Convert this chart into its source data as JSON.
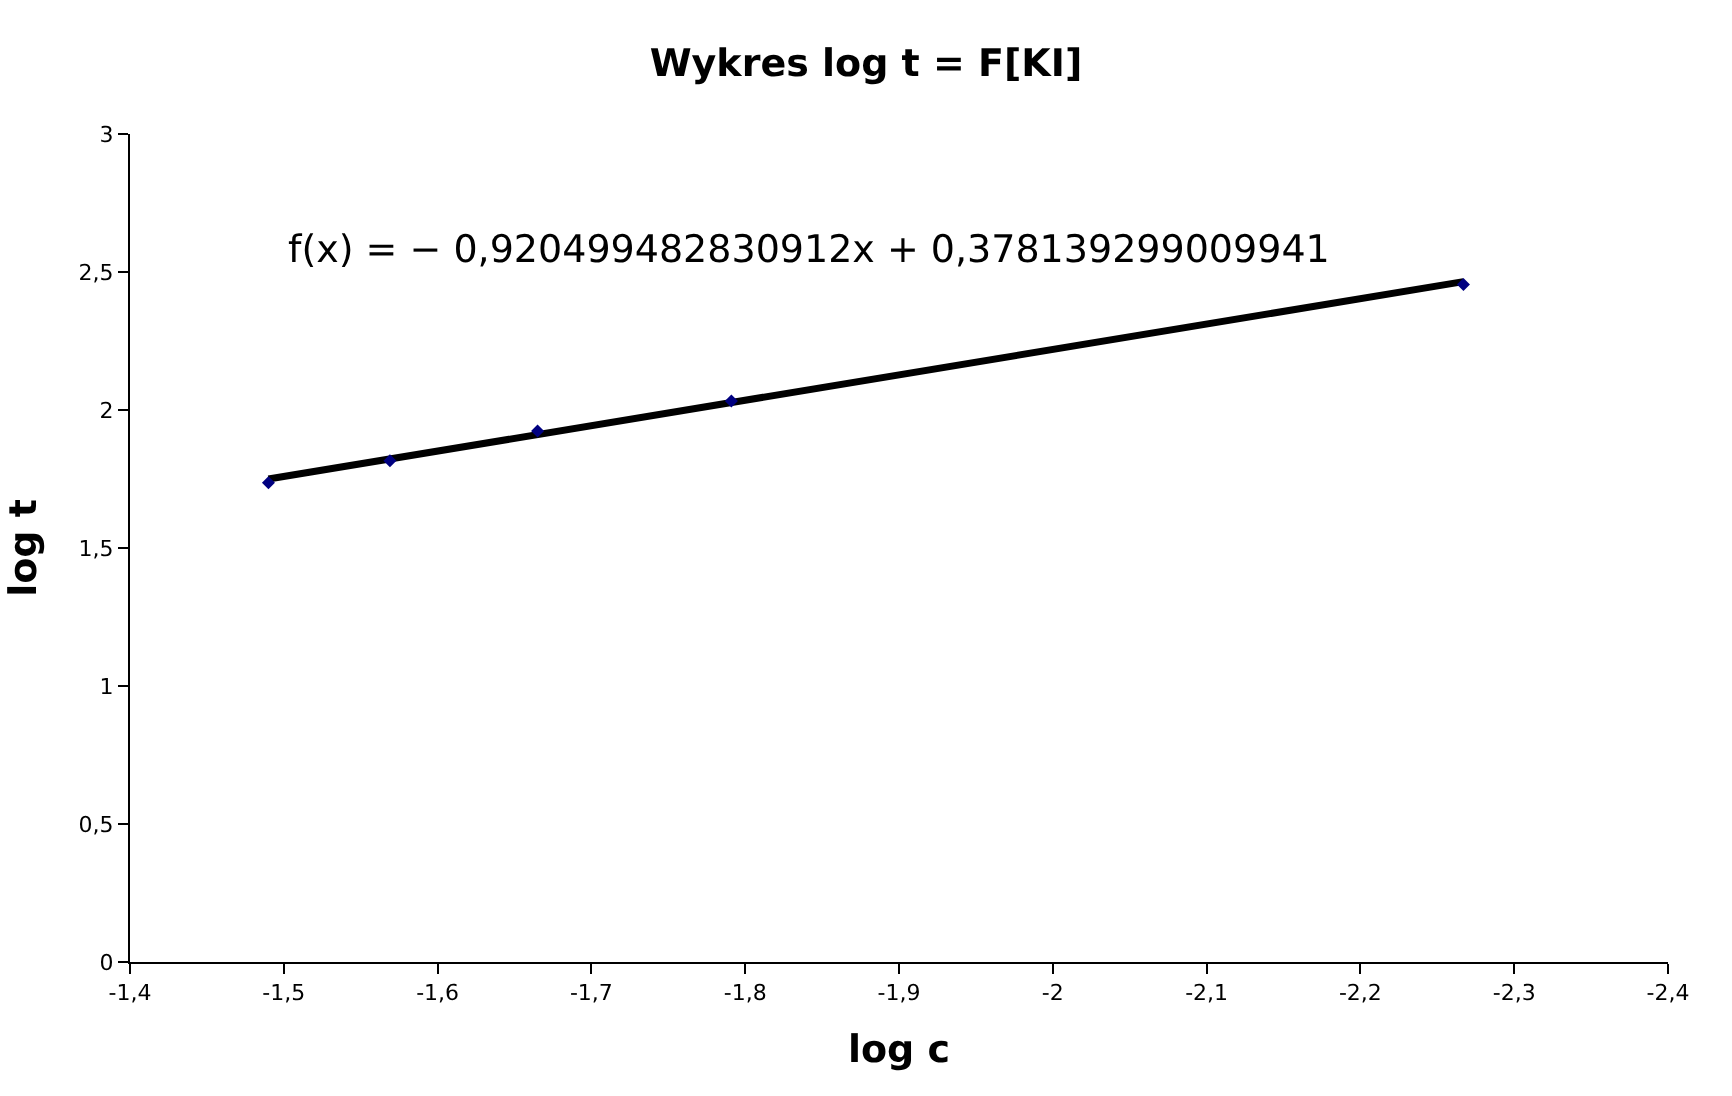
{
  "chart_data": {
    "type": "scatter",
    "title": "Wykres log t = F[KI]",
    "xlabel": "log c",
    "ylabel": "log t",
    "annotations": [
      "f(x) = − 0,920499482830912x + 0,378139299009941"
    ],
    "series": [
      {
        "color": "#000080",
        "x": [
          -1.49,
          -1.569,
          -1.665,
          -1.791,
          -2.267
        ],
        "values": [
          1.736,
          1.816,
          1.924,
          2.033,
          2.455
        ]
      },
      {
        "type": "line",
        "color": "#000000",
        "marker": "none",
        "x": [
          -1.49,
          -2.267
        ],
        "values": [
          1.75,
          2.465
        ]
      }
    ],
    "xlim": [
      -1.4,
      -2.4
    ],
    "xticks": [
      {
        "value": -1.4,
        "label": "-1,4"
      },
      {
        "value": -1.5,
        "label": "-1,5"
      },
      {
        "value": -1.6,
        "label": "-1,6"
      },
      {
        "value": -1.7,
        "label": "-1,7"
      },
      {
        "value": -1.8,
        "label": "-1,8"
      },
      {
        "value": -1.9,
        "label": "-1,9"
      },
      {
        "value": -2,
        "label": "-2"
      },
      {
        "value": -2.1,
        "label": "-2,1"
      },
      {
        "value": -2.2,
        "label": "-2,2"
      },
      {
        "value": -2.3,
        "label": "-2,3"
      },
      {
        "value": -2.4,
        "label": "-2,4"
      }
    ],
    "ylim": [
      0,
      3
    ],
    "yticks": [
      0,
      {
        "value": 0.5,
        "label": "0,5"
      },
      1,
      {
        "value": 1.5,
        "label": "1,5"
      },
      2,
      {
        "value": 2.5,
        "label": "2,5"
      },
      3
    ],
    "marker": "diamond"
  }
}
